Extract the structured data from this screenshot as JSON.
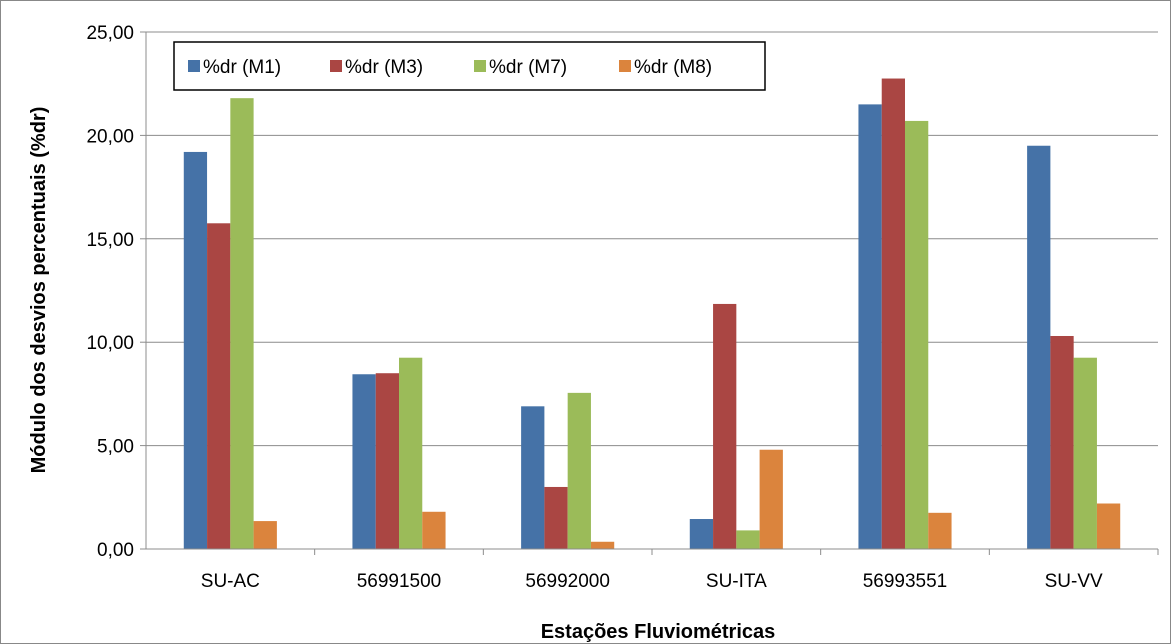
{
  "chart_data": {
    "type": "bar",
    "title": "",
    "xlabel": "Estações Fluviométricas",
    "ylabel": "Módulo dos desvios percentuais (%dr)",
    "ylim": [
      0,
      25
    ],
    "yticks": [
      "0,00",
      "5,00",
      "10,00",
      "15,00",
      "20,00",
      "25,00"
    ],
    "categories": [
      "SU-AC",
      "56991500",
      "56992000",
      "SU-ITA",
      "56993551",
      "SU-VV"
    ],
    "series": [
      {
        "name": "%dr (M1)",
        "color": "#4572A7",
        "values": [
          19.2,
          8.45,
          6.9,
          1.45,
          21.5,
          19.5
        ]
      },
      {
        "name": "%dr (M3)",
        "color": "#AA4643",
        "values": [
          15.75,
          8.5,
          3.0,
          11.85,
          22.75,
          10.3
        ]
      },
      {
        "name": "%dr (M7)",
        "color": "#9BBB59",
        "values": [
          21.8,
          9.25,
          7.55,
          0.9,
          20.7,
          9.25
        ]
      },
      {
        "name": "%dr (M8)",
        "color": "#DB843D",
        "values": [
          1.35,
          1.8,
          0.35,
          4.8,
          1.75,
          2.2
        ]
      }
    ],
    "grid": true,
    "legend": "top-left"
  }
}
